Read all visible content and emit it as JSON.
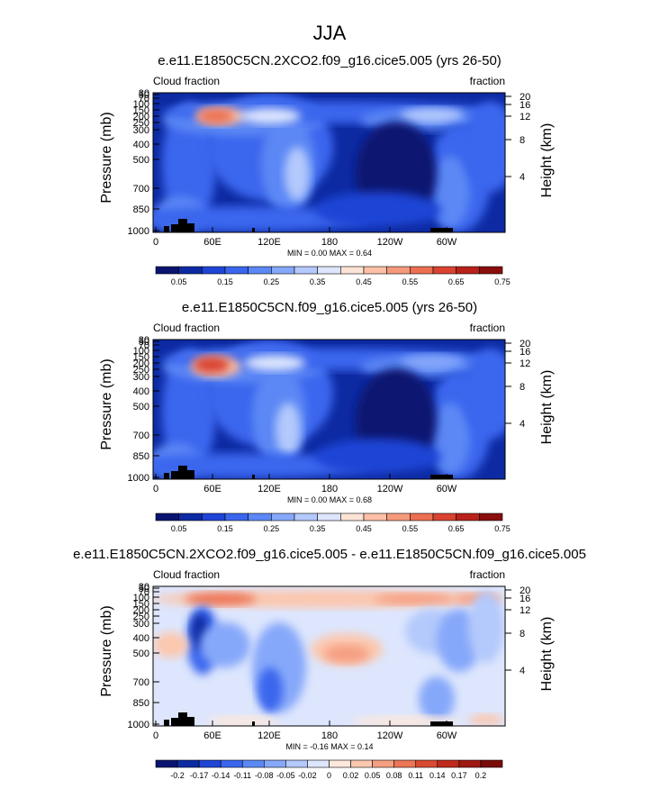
{
  "page_title": "JJA",
  "chart_data": [
    {
      "type": "heatmap",
      "title": "e.e11.E1850C5CN.2XCO2.f09_g16.cice5.005 (yrs 26-50)",
      "left_label": "Cloud fraction",
      "right_label": "fraction",
      "ylabel": "Pressure (mb)",
      "ylabel_right": "Height (km)",
      "x_ticks": [
        "0",
        "60E",
        "120E",
        "180",
        "120W",
        "60W"
      ],
      "y_ticks": [
        "30",
        "50",
        "70",
        "100",
        "150",
        "200",
        "250",
        "300",
        "400",
        "500",
        "700",
        "850",
        "1000"
      ],
      "height_ticks": [
        "20",
        "16",
        "12",
        "8",
        "4"
      ],
      "stats": "MIN =   0.00   MAX =   0.64",
      "colorbar": {
        "labels": [
          "0.05",
          "0.15",
          "0.25",
          "0.35",
          "0.45",
          "0.55",
          "0.65",
          "0.75"
        ],
        "colors": [
          "#0a1470",
          "#0d2aa3",
          "#1f45d6",
          "#3a66ee",
          "#5c88f5",
          "#86a8fa",
          "#b4c9fc",
          "#dde6fd",
          "#fde3d6",
          "#fcc0a6",
          "#f59a7c",
          "#ec6f51",
          "#d94330",
          "#b8221a",
          "#8a0e0c"
        ],
        "ticks_mid": true
      }
    },
    {
      "type": "heatmap",
      "title": "e.e11.E1850C5CN.f09_g16.cice5.005 (yrs 26-50)",
      "left_label": "Cloud fraction",
      "right_label": "fraction",
      "ylabel": "Pressure (mb)",
      "ylabel_right": "Height (km)",
      "x_ticks": [
        "0",
        "60E",
        "120E",
        "180",
        "120W",
        "60W"
      ],
      "y_ticks": [
        "30",
        "50",
        "70",
        "100",
        "150",
        "200",
        "250",
        "300",
        "400",
        "500",
        "700",
        "850",
        "1000"
      ],
      "height_ticks": [
        "20",
        "16",
        "12",
        "8",
        "4"
      ],
      "stats": "MIN =   0.00   MAX =   0.68",
      "colorbar": {
        "labels": [
          "0.05",
          "0.15",
          "0.25",
          "0.35",
          "0.45",
          "0.55",
          "0.65",
          "0.75"
        ],
        "colors": [
          "#0a1470",
          "#0d2aa3",
          "#1f45d6",
          "#3a66ee",
          "#5c88f5",
          "#86a8fa",
          "#b4c9fc",
          "#dde6fd",
          "#fde3d6",
          "#fcc0a6",
          "#f59a7c",
          "#ec6f51",
          "#d94330",
          "#b8221a",
          "#8a0e0c"
        ],
        "ticks_mid": true
      }
    },
    {
      "type": "heatmap",
      "title": "e.e11.E1850C5CN.2XCO2.f09_g16.cice5.005 - e.e11.E1850C5CN.f09_g16.cice5.005",
      "left_label": "Cloud fraction",
      "right_label": "fraction",
      "ylabel": "Pressure (mb)",
      "ylabel_right": "Height (km)",
      "x_ticks": [
        "0",
        "60E",
        "120E",
        "180",
        "120W",
        "60W"
      ],
      "y_ticks": [
        "30",
        "50",
        "70",
        "100",
        "150",
        "200",
        "250",
        "300",
        "400",
        "500",
        "700",
        "850",
        "1000"
      ],
      "height_ticks": [
        "20",
        "16",
        "12",
        "8",
        "4"
      ],
      "stats": "MIN = -0.16   MAX =   0.14",
      "colorbar": {
        "labels": [
          "-0.2",
          "-0.17",
          "-0.14",
          "-0.11",
          "-0.08",
          "-0.05",
          "-0.02",
          "0",
          "0.02",
          "0.05",
          "0.08",
          "0.11",
          "0.14",
          "0.17",
          "0.2"
        ],
        "colors": [
          "#0a1470",
          "#0d2aa3",
          "#1f45d6",
          "#3a66ee",
          "#5c88f5",
          "#86a8fa",
          "#b4c9fc",
          "#dde6fd",
          "#fde8dc",
          "#fcc7ae",
          "#f59f82",
          "#ec7556",
          "#d94a33",
          "#bf2a1d",
          "#a01812",
          "#7a0b09"
        ],
        "ticks_mid": false
      }
    }
  ]
}
